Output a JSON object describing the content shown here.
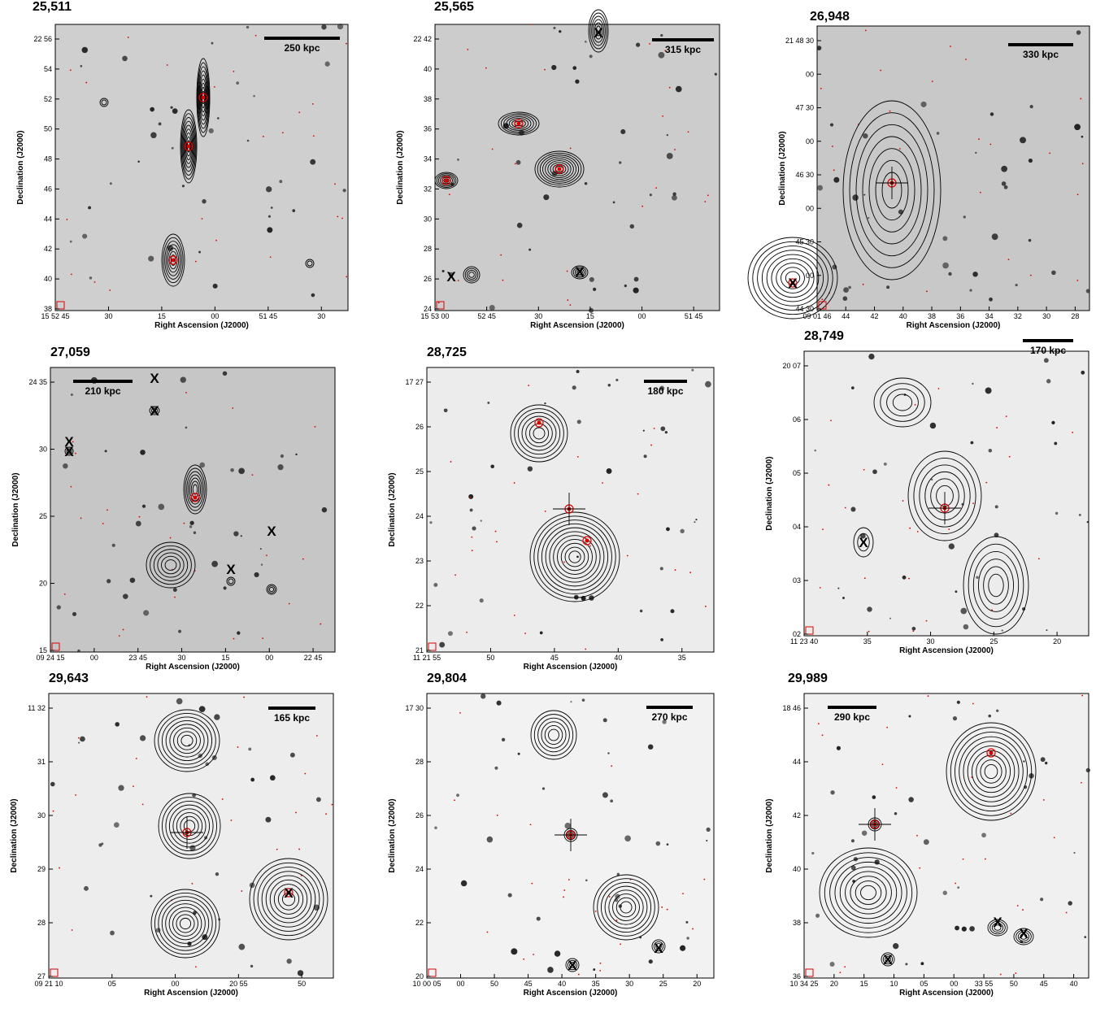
{
  "axes": {
    "xlabel": "Right Ascension (J2000)",
    "ylabel": "Declination (J2000)"
  },
  "panels": [
    {
      "id": "25,511",
      "scale": "250 kpc",
      "xticks": [
        "15 52 45",
        "30",
        "15",
        "00",
        "51 45",
        "30"
      ],
      "yticks": [
        "22 56",
        "54",
        "52",
        "50",
        "48",
        "46",
        "44",
        "42",
        "40",
        "38"
      ]
    },
    {
      "id": "25,565",
      "scale": "315 kpc",
      "xticks": [
        "15 53 00",
        "52 45",
        "30",
        "15",
        "00",
        "51 45"
      ],
      "yticks": [
        "22 42",
        "40",
        "38",
        "36",
        "34",
        "32",
        "30",
        "28",
        "26",
        "24"
      ]
    },
    {
      "id": "26,948",
      "scale": "330 kpc",
      "xticks": [
        "09 01 46",
        "44",
        "42",
        "40",
        "38",
        "36",
        "34",
        "32",
        "30",
        "28"
      ],
      "yticks": [
        "21 48 30",
        "00",
        "47 30",
        "00",
        "46 30",
        "00",
        "45 30",
        "00",
        "44 30"
      ]
    },
    {
      "id": "27,059",
      "scale": "210 kpc",
      "xticks": [
        "09 24 15",
        "00",
        "23 45",
        "30",
        "15",
        "00",
        "22 45"
      ],
      "yticks": [
        "24 35",
        "30",
        "25",
        "20",
        "15"
      ]
    },
    {
      "id": "28,725",
      "scale": "180 kpc",
      "xticks": [
        "11 21 55",
        "50",
        "45",
        "40",
        "35"
      ],
      "yticks": [
        "17 27",
        "26",
        "25",
        "24",
        "23",
        "22",
        "21"
      ]
    },
    {
      "id": "28,749",
      "scale": "170 kpc",
      "xticks": [
        "11 23 40",
        "35",
        "30",
        "25",
        "20"
      ],
      "yticks": [
        "20 07",
        "06",
        "05",
        "04",
        "03",
        "02"
      ]
    },
    {
      "id": "29,643",
      "scale": "165 kpc",
      "xticks": [
        "09 21 10",
        "05",
        "00",
        "20 55",
        "50"
      ],
      "yticks": [
        "11 32",
        "31",
        "30",
        "29",
        "28",
        "27"
      ]
    },
    {
      "id": "29,804",
      "scale": "270 kpc",
      "xticks": [
        "10 00 05",
        "00",
        "50",
        "45",
        "40",
        "35",
        "30",
        "25",
        "20"
      ],
      "yticks": [
        "17 30",
        "28",
        "26",
        "24",
        "22",
        "20"
      ]
    },
    {
      "id": "29,989",
      "scale": "290 kpc",
      "xticks": [
        "10 34 25",
        "20",
        "15",
        "10",
        "05",
        "00",
        "33 55",
        "50",
        "45",
        "40"
      ],
      "yticks": [
        "18 46",
        "44",
        "42",
        "40",
        "38",
        "36"
      ]
    }
  ]
}
